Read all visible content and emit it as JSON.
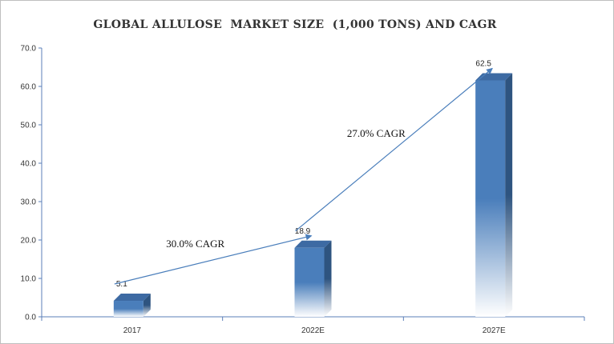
{
  "chart_data": {
    "type": "bar",
    "title": "GLOBAL ALLULOSE  MARKET SIZE  (1,000 TONS) AND CAGR",
    "categories": [
      "2017",
      "2022E",
      "2027E"
    ],
    "values": [
      5.1,
      18.9,
      62.5
    ],
    "data_labels": [
      "5.1",
      "18.9",
      "62.5"
    ],
    "ylim": [
      0,
      70
    ],
    "yticks": [
      "0.0",
      "10.0",
      "20.0",
      "30.0",
      "40.0",
      "50.0",
      "60.0",
      "70.0"
    ],
    "xlabel": "",
    "ylabel": "",
    "grid": false,
    "legend": "none",
    "style": "3d-column-gradient",
    "annotations": [
      {
        "text": "30.0% CAGR",
        "from": "2017",
        "to": "2022E"
      },
      {
        "text": "27.0% CAGR",
        "from": "2022E",
        "to": "2027E"
      }
    ],
    "colors": {
      "bar_front": "#4a7ebb",
      "bar_side": "#2e5480",
      "bar_top": "#3d6aa3",
      "arrow": "#4a7ebb",
      "axis": "#5b7fb8"
    }
  }
}
